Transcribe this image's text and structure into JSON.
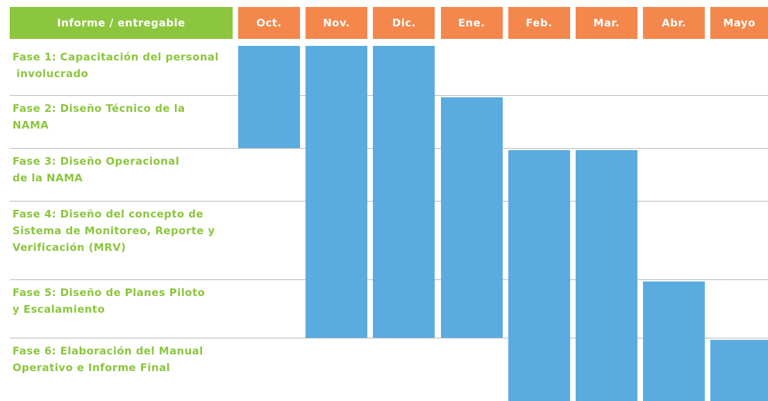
{
  "table": {
    "header": "Informe / entregable",
    "months": [
      "Oct.",
      "Nov.",
      "Dic.",
      "Ene.",
      "Feb.",
      "Mar.",
      "Abr.",
      "Mayo"
    ],
    "rows": [
      {
        "lines": [
          "Fase 1: Capacitación del personal",
          " involucrado"
        ],
        "active": [
          true,
          true,
          true,
          false,
          false,
          false,
          false,
          false
        ]
      },
      {
        "lines": [
          "Fase 2: Diseño Técnico de la",
          "NAMA"
        ],
        "active": [
          true,
          true,
          true,
          true,
          false,
          false,
          false,
          false
        ]
      },
      {
        "lines": [
          "Fase 3: Diseño Operacional",
          "de la NAMA"
        ],
        "active": [
          false,
          true,
          true,
          true,
          true,
          true,
          false,
          false
        ]
      },
      {
        "lines": [
          "Fase 4: Diseño del concepto de",
          "Sistema de Monitoreo, Reporte y",
          "Verificación (MRV)"
        ],
        "active": [
          false,
          true,
          true,
          true,
          true,
          true,
          false,
          false
        ]
      },
      {
        "lines": [
          "Fase 5: Diseño de Planes Piloto",
          "y Escalamiento"
        ],
        "active": [
          false,
          true,
          true,
          true,
          true,
          true,
          true,
          false
        ]
      },
      {
        "lines": [
          "Fase 6: Elaboración del Manual",
          "Operativo e Informe Final"
        ],
        "active": [
          false,
          false,
          false,
          false,
          true,
          true,
          true,
          true
        ]
      }
    ]
  }
}
